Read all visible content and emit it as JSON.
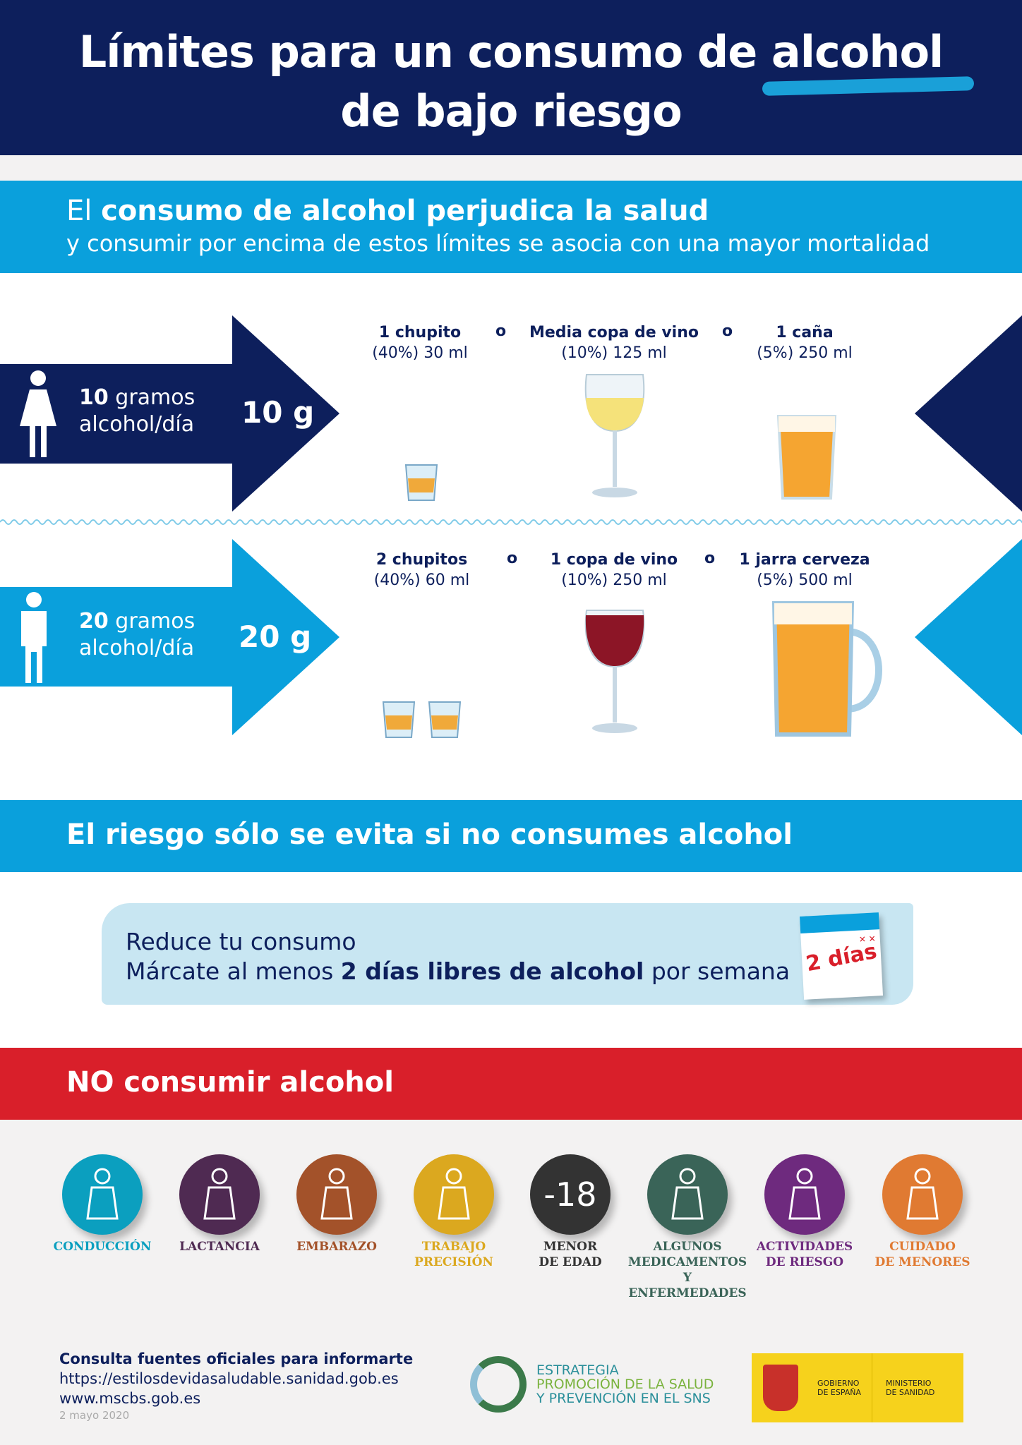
{
  "header": {
    "title_line1": "Límites para un consumo de alcohol",
    "title_line2": "de bajo riesgo"
  },
  "intro": {
    "prefix": "El ",
    "bold": "consumo de alcohol perjudica la salud",
    "line2": "y consumir por encima de estos límites se asocia con una mayor mortalidad"
  },
  "women": {
    "icon": "woman-icon",
    "amount_bold": "10",
    "amount_rest": " gramos",
    "per_day": "alcohol/día",
    "big": "10 g",
    "color": "#0d1f5c",
    "drinks": [
      {
        "name": "1 chupito",
        "detail": "(40%) 30 ml"
      },
      {
        "name": "Media copa de vino",
        "detail": "(10%) 125 ml"
      },
      {
        "name": "1 caña",
        "detail": "(5%) 250 ml"
      }
    ]
  },
  "men": {
    "icon": "man-icon",
    "amount_bold": "20",
    "amount_rest": " gramos",
    "per_day": "alcohol/día",
    "big": "20 g",
    "color": "#0aa0dc",
    "drinks": [
      {
        "name": "2 chupitos",
        "detail": "(40%) 60 ml"
      },
      {
        "name": "1 copa de vino",
        "detail": "(10%) 250 ml"
      },
      {
        "name": "1 jarra cerveza",
        "detail": "(5%) 500 ml"
      }
    ]
  },
  "or": "o",
  "risk": {
    "title": "El riesgo sólo se evita si no consumes alcohol"
  },
  "reduce": {
    "line1": "Reduce tu consumo",
    "pre": "Márcate al menos ",
    "bold": "2 días libres de alcohol",
    "post": " por semana",
    "calendar": "2 días"
  },
  "no_consume": {
    "title": "NO consumir alcohol",
    "items": [
      {
        "label1": "CONDUCCIÓN",
        "label2": "",
        "label3": "",
        "color": "#0b9fbf",
        "icon": "driving-icon"
      },
      {
        "label1": "LACTANCIA",
        "label2": "",
        "label3": "",
        "color": "#4f2a52",
        "icon": "breastfeeding-icon"
      },
      {
        "label1": "EMBARAZO",
        "label2": "",
        "label3": "",
        "color": "#a3522a",
        "icon": "pregnancy-icon"
      },
      {
        "label1": "TRABAJO",
        "label2": "PRECISIÓN",
        "label3": "",
        "color": "#dba81f",
        "icon": "forklift-icon"
      },
      {
        "label1": "MENOR",
        "label2": "DE EDAD",
        "label3": "",
        "color": "#333333",
        "icon": "minus-18-icon",
        "glyph": "-18"
      },
      {
        "label1": "ALGUNOS",
        "label2": "MEDICAMENTOS",
        "label3": "Y ENFERMEDADES",
        "color": "#3a6458",
        "icon": "medication-icon"
      },
      {
        "label1": "ACTIVIDADES",
        "label2": "DE RIESGO",
        "label3": "",
        "color": "#6e2a7e",
        "icon": "risk-activity-icon"
      },
      {
        "label1": "CUIDADO",
        "label2": "DE MENORES",
        "label3": "",
        "color": "#e07a32",
        "icon": "child-care-icon"
      }
    ]
  },
  "footer": {
    "heading": "Consulta fuentes oficiales para informarte",
    "url1": "https://estilosdevidasaludable.sanidad.gob.es",
    "url2": "www.mscbs.gob.es",
    "date": "2 mayo 2020",
    "strategy": {
      "l1": "ESTRATEGIA",
      "l2": "PROMOCIÓN DE LA SALUD",
      "l3": "Y PREVENCIÓN EN EL SNS"
    },
    "gov": {
      "l1": "GOBIERNO",
      "l2": "DE ESPAÑA",
      "l3": "MINISTERIO",
      "l4": "DE SANIDAD"
    }
  }
}
